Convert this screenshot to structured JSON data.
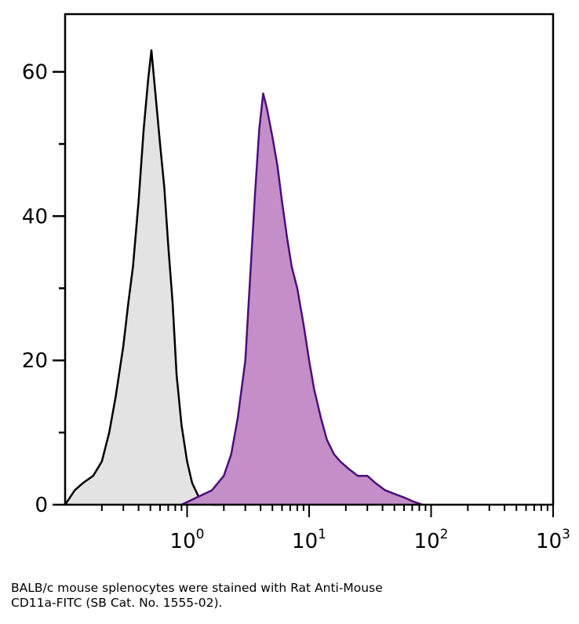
{
  "chart_data": {
    "type": "area",
    "title": "",
    "xlabel": "",
    "ylabel": "",
    "x_scale": "log",
    "xlim": [
      0.1,
      1000
    ],
    "ylim": [
      0,
      68
    ],
    "y_ticks": [
      0,
      20,
      40,
      60
    ],
    "x_ticks": [
      {
        "value": 1,
        "base": "10",
        "exp": "0"
      },
      {
        "value": 10,
        "base": "10",
        "exp": "1"
      },
      {
        "value": 100,
        "base": "10",
        "exp": "2"
      },
      {
        "value": 1000,
        "base": "10",
        "exp": "3"
      }
    ],
    "grid": false,
    "series": [
      {
        "fill": "#e3e3e3",
        "stroke": "#000000",
        "x": [
          0.1,
          0.12,
          0.14,
          0.17,
          0.2,
          0.23,
          0.26,
          0.3,
          0.33,
          0.36,
          0.4,
          0.44,
          0.48,
          0.51,
          0.55,
          0.6,
          0.65,
          0.7,
          0.76,
          0.82,
          0.9,
          1.0,
          1.1,
          1.25,
          1.4,
          1.6,
          1.9
        ],
        "y": [
          0,
          2,
          3,
          4,
          6,
          10,
          15,
          22,
          28,
          33,
          42,
          52,
          59,
          63,
          57,
          50,
          44,
          36,
          28,
          18,
          11,
          6,
          3,
          1,
          0.5,
          0,
          0
        ]
      },
      {
        "fill": "#c48fc8",
        "stroke": "#4b0f7a",
        "x": [
          0.9,
          1.2,
          1.6,
          2.0,
          2.3,
          2.6,
          3.0,
          3.3,
          3.6,
          3.9,
          4.2,
          4.5,
          5.0,
          5.5,
          6.0,
          6.6,
          7.2,
          8.0,
          9.0,
          10.0,
          11.0,
          12.5,
          14.0,
          16.0,
          18.0,
          21.0,
          25.0,
          30.0,
          35.0,
          42.0,
          50.0,
          60.0,
          70.0,
          85.0
        ],
        "y": [
          0,
          1,
          2,
          4,
          7,
          12,
          20,
          32,
          43,
          52,
          57,
          55,
          51,
          47,
          42,
          37,
          33,
          30,
          25,
          20,
          16,
          12,
          9,
          7,
          6,
          5,
          4,
          4,
          3,
          2,
          1.5,
          1,
          0.5,
          0
        ]
      }
    ]
  },
  "caption": {
    "line1": "BALB/c mouse splenocytes were stained with Rat Anti-Mouse",
    "line2": "CD11a-FITC (SB Cat. No. 1555-02)."
  }
}
